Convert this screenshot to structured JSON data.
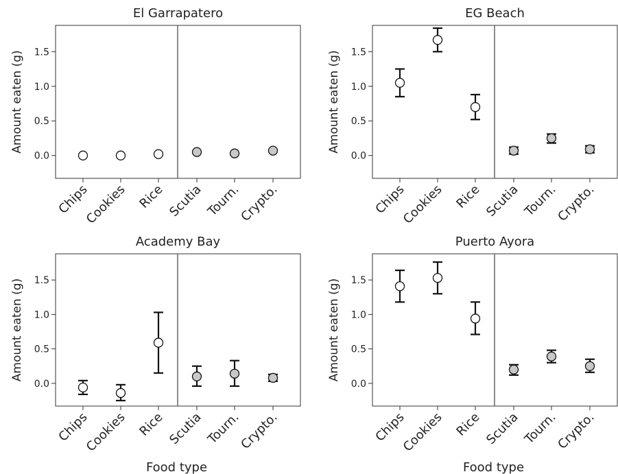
{
  "chart_data": [
    {
      "type": "scatter",
      "title": "El Garrapatero",
      "ylabel": "Amount eaten (g)",
      "xlabel": "",
      "categories": [
        "Chips",
        "Cookies",
        "Rice",
        "Scutia",
        "Tourn.",
        "Crypto."
      ],
      "values": [
        0.0,
        0.0,
        0.02,
        0.05,
        0.03,
        0.07
      ],
      "error_low": [
        0.0,
        0.0,
        0.02,
        0.05,
        0.03,
        0.07
      ],
      "error_high": [
        0.0,
        0.0,
        0.02,
        0.05,
        0.03,
        0.07
      ],
      "ylim": [
        -0.33,
        1.88
      ],
      "yticks": [
        "0.0",
        "0.5",
        "1.0",
        "1.5"
      ],
      "ytick_values": [
        0.0,
        0.5,
        1.0,
        1.5
      ]
    },
    {
      "type": "scatter",
      "title": "EG Beach",
      "ylabel": "Amount eaten (g)",
      "xlabel": "",
      "categories": [
        "Chips",
        "Cookies",
        "Rice",
        "Scutia",
        "Tourn.",
        "Crypto."
      ],
      "values": [
        1.05,
        1.67,
        0.7,
        0.07,
        0.25,
        0.09
      ],
      "error_low": [
        0.85,
        1.5,
        0.52,
        0.02,
        0.18,
        0.04
      ],
      "error_high": [
        1.25,
        1.84,
        0.88,
        0.12,
        0.31,
        0.14
      ],
      "ylim": [
        -0.33,
        1.88
      ],
      "yticks": [
        "0.0",
        "0.5",
        "1.0",
        "1.5"
      ],
      "ytick_values": [
        0.0,
        0.5,
        1.0,
        1.5
      ]
    },
    {
      "type": "scatter",
      "title": "Academy Bay",
      "ylabel": "Amount eaten (g)",
      "xlabel": "Food type",
      "categories": [
        "Chips",
        "Cookies",
        "Rice",
        "Scutia",
        "Tourn.",
        "Crypto."
      ],
      "values": [
        -0.06,
        -0.14,
        0.59,
        0.1,
        0.14,
        0.08
      ],
      "error_low": [
        -0.16,
        -0.25,
        0.15,
        -0.04,
        -0.04,
        0.03
      ],
      "error_high": [
        0.04,
        -0.02,
        1.03,
        0.25,
        0.33,
        0.13
      ],
      "ylim": [
        -0.33,
        1.88
      ],
      "yticks": [
        "0.0",
        "0.5",
        "1.0",
        "1.5"
      ],
      "ytick_values": [
        0.0,
        0.5,
        1.0,
        1.5
      ]
    },
    {
      "type": "scatter",
      "title": "Puerto Ayora",
      "ylabel": "Amount eaten (g)",
      "xlabel": "Food type",
      "categories": [
        "Chips",
        "Cookies",
        "Rice",
        "Scutia",
        "Tourn.",
        "Crypto."
      ],
      "values": [
        1.41,
        1.53,
        0.94,
        0.2,
        0.39,
        0.25
      ],
      "error_low": [
        1.18,
        1.3,
        0.71,
        0.12,
        0.3,
        0.16
      ],
      "error_high": [
        1.64,
        1.76,
        1.18,
        0.27,
        0.48,
        0.35
      ],
      "ylim": [
        -0.33,
        1.88
      ],
      "yticks": [
        "0.0",
        "0.5",
        "1.0",
        "1.5"
      ],
      "ytick_values": [
        0.0,
        0.5,
        1.0,
        1.5
      ]
    }
  ],
  "colors": {
    "human_food_fill": "#ffffff",
    "native_food_fill": "#c8c8c8",
    "marker_stroke": "#111111"
  }
}
